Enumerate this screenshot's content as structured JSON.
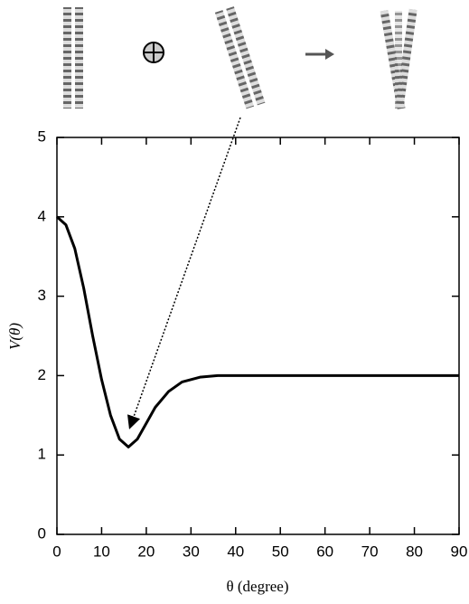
{
  "chart_data": {
    "type": "line",
    "xlabel": "θ (degree)",
    "ylabel": "V(θ)",
    "x": [
      0,
      2,
      4,
      6,
      8,
      10,
      12,
      14,
      16,
      18,
      20,
      22,
      25,
      28,
      32,
      36,
      40,
      50,
      60,
      70,
      80,
      90
    ],
    "series": [
      {
        "color": "#000000",
        "values": [
          4.0,
          3.9,
          3.6,
          3.1,
          2.5,
          1.95,
          1.5,
          1.2,
          1.1,
          1.2,
          1.4,
          1.6,
          1.8,
          1.92,
          1.98,
          2.0,
          2.0,
          2.0,
          2.0,
          2.0,
          2.0,
          2.0
        ]
      }
    ],
    "xlim": [
      0,
      90
    ],
    "xticks": [
      0,
      10,
      20,
      30,
      40,
      50,
      60,
      70,
      80,
      90
    ],
    "ylim": [
      0,
      5
    ],
    "yticks": [
      0,
      1,
      2,
      3,
      4,
      5
    ]
  }
}
